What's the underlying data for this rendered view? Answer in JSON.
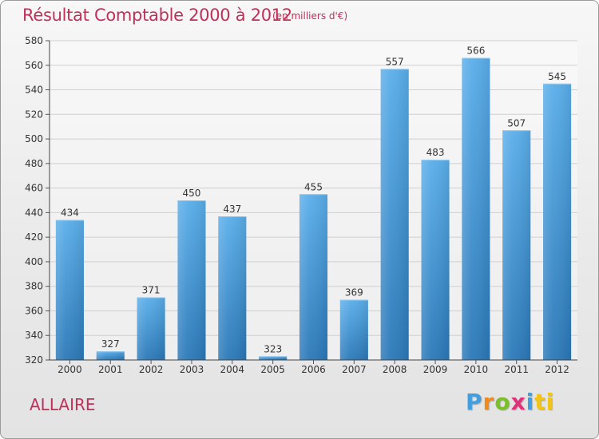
{
  "header": {
    "title": "Résultat Comptable 2000 à 2012",
    "subtitle": "(en milliers d'€)"
  },
  "footer": {
    "commune": "ALLAIRE",
    "logo_letters": [
      "P",
      "r",
      "o",
      "x",
      "i",
      "ti"
    ]
  },
  "colors": {
    "bar_top": "#5aaeea",
    "bar_bottom": "#2a78b8",
    "title": "#c0305a"
  },
  "chart_data": {
    "type": "bar",
    "title": "Résultat Comptable 2000 à 2012",
    "xlabel": "",
    "ylabel": "",
    "categories": [
      "2000",
      "2001",
      "2002",
      "2003",
      "2004",
      "2005",
      "2006",
      "2007",
      "2008",
      "2009",
      "2010",
      "2011",
      "2012"
    ],
    "values": [
      434,
      327,
      371,
      450,
      437,
      323,
      455,
      369,
      557,
      483,
      566,
      507,
      545
    ],
    "ylim": [
      320,
      580
    ],
    "yticks": [
      320,
      340,
      360,
      380,
      400,
      420,
      440,
      460,
      480,
      500,
      520,
      540,
      560,
      580
    ],
    "grid": true,
    "legend": "none"
  }
}
